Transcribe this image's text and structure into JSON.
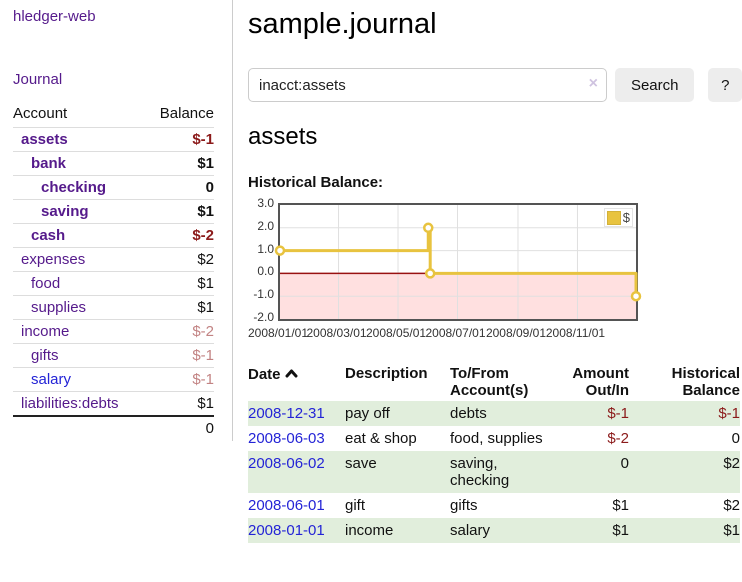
{
  "app": {
    "title": "hledger-web",
    "nav_journal": "Journal"
  },
  "sidebar": {
    "header": {
      "account": "Account",
      "balance": "Balance"
    },
    "rows": [
      {
        "name": "assets",
        "balance": "$-1",
        "level": 0,
        "bold": true,
        "neg": "strong"
      },
      {
        "name": "bank",
        "balance": "$1",
        "level": 1,
        "bold": true,
        "neg": "none"
      },
      {
        "name": "checking",
        "balance": "0",
        "level": 2,
        "bold": true,
        "neg": "none"
      },
      {
        "name": "saving",
        "balance": "$1",
        "level": 2,
        "bold": true,
        "neg": "none"
      },
      {
        "name": "cash",
        "balance": "$-2",
        "level": 1,
        "bold": true,
        "neg": "strong"
      },
      {
        "name": "expenses",
        "balance": "$2",
        "level": 0,
        "bold": false,
        "neg": "none"
      },
      {
        "name": "food",
        "balance": "$1",
        "level": 1,
        "bold": false,
        "neg": "none"
      },
      {
        "name": "supplies",
        "balance": "$1",
        "level": 1,
        "bold": false,
        "neg": "none"
      },
      {
        "name": "income",
        "balance": "$-2",
        "level": 0,
        "bold": false,
        "neg": "weak"
      },
      {
        "name": "gifts",
        "balance": "$-1",
        "level": 1,
        "bold": false,
        "neg": "weak"
      },
      {
        "name": "salary",
        "balance": "$-1",
        "level": 1,
        "bold": false,
        "neg": "weak",
        "unvisited": true
      },
      {
        "name": "liabilities:debts",
        "balance": "$1",
        "level": 0,
        "bold": false,
        "neg": "none"
      }
    ],
    "total": "0"
  },
  "main": {
    "title": "sample.journal",
    "search": {
      "value": "inacct:assets",
      "clear_icon": "×",
      "button": "Search",
      "help": "?"
    },
    "account_heading": "assets",
    "chart_label": "Historical Balance:"
  },
  "chart_data": {
    "type": "line",
    "title": "Historical Balance",
    "step": true,
    "series": [
      {
        "name": "$",
        "points": [
          [
            "2008-01-01",
            1
          ],
          [
            "2008-06-01",
            2
          ],
          [
            "2008-06-03",
            0
          ],
          [
            "2008-12-31",
            -1
          ]
        ]
      }
    ],
    "x_ticks": [
      "2008/01/01",
      "2008/03/01",
      "2008/05/01",
      "2008/07/01",
      "2008/09/01",
      "2008/11/01"
    ],
    "y_ticks": [
      "3.0",
      "2.0",
      "1.0",
      "0.0",
      "-1.0",
      "-2.0"
    ],
    "ylim": [
      -2,
      3
    ],
    "xlim": [
      "2008-01-01",
      "2008-12-31"
    ],
    "legend_position": "top-right",
    "grid": true,
    "series_color": "#e8c33f",
    "negative_region_fill": "#ffe0e0",
    "zero_line_color": "#991111",
    "grid_color": "#e0e0e0",
    "border_color": "#545454"
  },
  "table": {
    "headers": {
      "date": "Date",
      "description": "Description",
      "accounts": "To/From Account(s)",
      "amount": "Amount Out/In",
      "balance": "Historical Balance"
    },
    "sort_icon": "chevron-up-icon",
    "rows": [
      {
        "date": "2008-12-31",
        "description": "pay off",
        "accounts": "debts",
        "amount": "$-1",
        "balance": "$-1"
      },
      {
        "date": "2008-06-03",
        "description": "eat & shop",
        "accounts": "food, supplies",
        "amount": "$-2",
        "balance": "0"
      },
      {
        "date": "2008-06-02",
        "description": "save",
        "accounts": "saving, checking",
        "amount": "0",
        "balance": "$2"
      },
      {
        "date": "2008-06-01",
        "description": "gift",
        "accounts": "gifts",
        "amount": "$1",
        "balance": "$2"
      },
      {
        "date": "2008-01-01",
        "description": "income",
        "accounts": "salary",
        "amount": "$1",
        "balance": "$1"
      }
    ]
  },
  "colors": {
    "link_purple": "#551a8b",
    "link_blue": "#2424d6",
    "negative_strong": "#8b1a1a",
    "negative_weak": "#c28383",
    "row_green": "#e1eedc",
    "series_gold": "#e8c33f"
  }
}
